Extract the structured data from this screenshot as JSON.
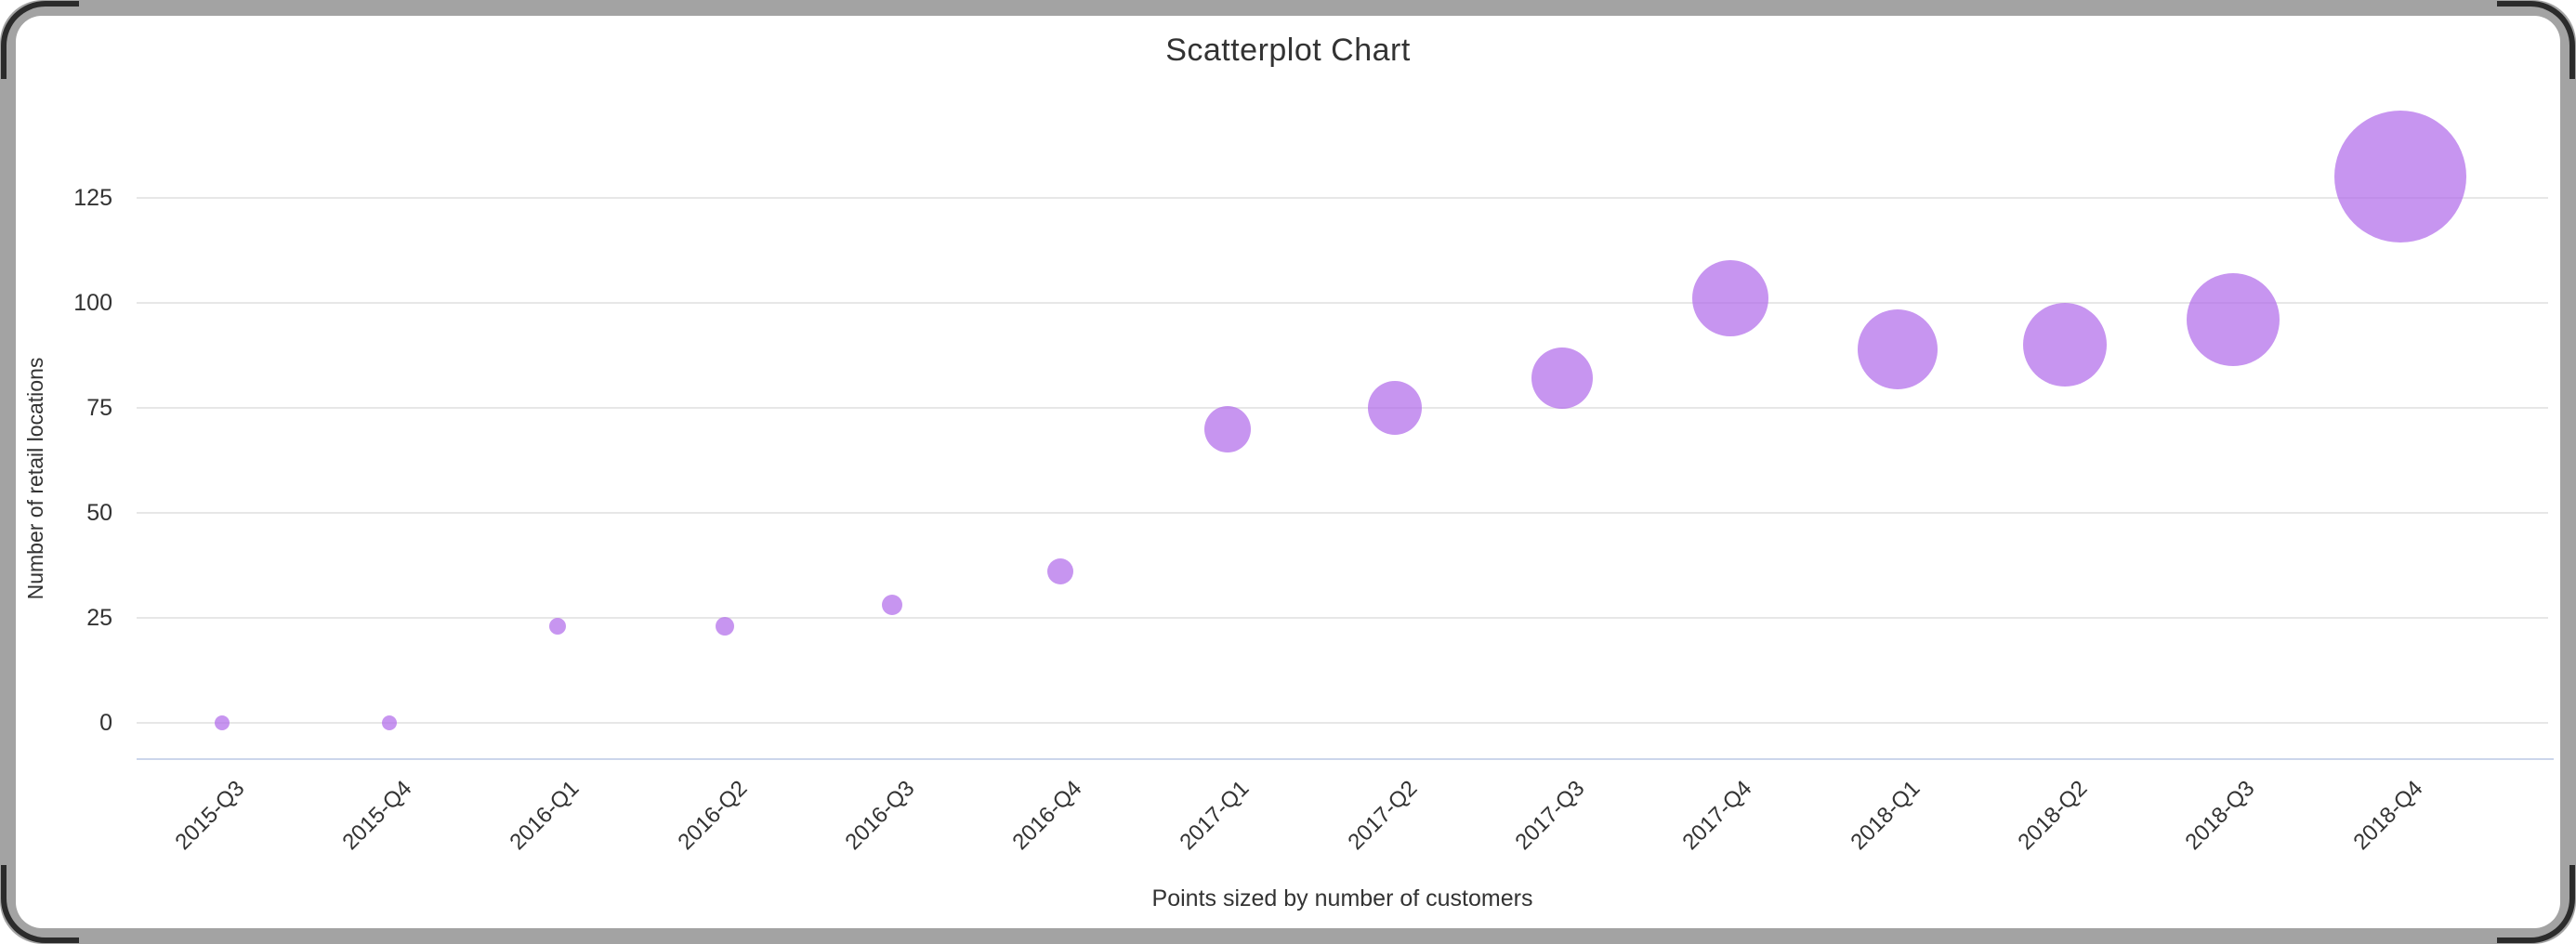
{
  "chart_data": {
    "type": "scatter",
    "title": "Scatterplot Chart",
    "xlabel": "Points sized by number of customers",
    "ylabel": "Number of retail locations",
    "categories": [
      "2015-Q3",
      "2015-Q4",
      "2016-Q1",
      "2016-Q2",
      "2016-Q3",
      "2016-Q4",
      "2017-Q1",
      "2017-Q2",
      "2017-Q3",
      "2017-Q4",
      "2018-Q1",
      "2018-Q2",
      "2018-Q3",
      "2018-Q4"
    ],
    "y_ticks": [
      0,
      25,
      50,
      75,
      100,
      125
    ],
    "ylim": [
      -9,
      139
    ],
    "grid": "horizontal-only",
    "legend": "none",
    "series": [
      {
        "name": "Number of retail locations",
        "points": [
          {
            "x": "2015-Q3",
            "y": 0,
            "radius_px": 8
          },
          {
            "x": "2015-Q4",
            "y": 0,
            "radius_px": 8
          },
          {
            "x": "2016-Q1",
            "y": 23,
            "radius_px": 9
          },
          {
            "x": "2016-Q2",
            "y": 23,
            "radius_px": 10
          },
          {
            "x": "2016-Q3",
            "y": 28,
            "radius_px": 11
          },
          {
            "x": "2016-Q4",
            "y": 36,
            "radius_px": 14
          },
          {
            "x": "2017-Q1",
            "y": 70,
            "radius_px": 25
          },
          {
            "x": "2017-Q2",
            "y": 75,
            "radius_px": 29
          },
          {
            "x": "2017-Q3",
            "y": 82,
            "radius_px": 33
          },
          {
            "x": "2017-Q4",
            "y": 101,
            "radius_px": 41
          },
          {
            "x": "2018-Q1",
            "y": 89,
            "radius_px": 43
          },
          {
            "x": "2018-Q2",
            "y": 90,
            "radius_px": 45
          },
          {
            "x": "2018-Q3",
            "y": 96,
            "radius_px": 50
          },
          {
            "x": "2018-Q4",
            "y": 130,
            "radius_px": 71
          }
        ]
      }
    ]
  },
  "colors": {
    "bubble": "#b16cea",
    "bubble_opacity": 0.72,
    "gridline": "#e7e7e7",
    "axis_line": "#ccd6eb",
    "text": "#333333",
    "frame_gray": "#a3a3a3",
    "frame_border": "#2b2b2b",
    "card_background": "#ffffff"
  }
}
